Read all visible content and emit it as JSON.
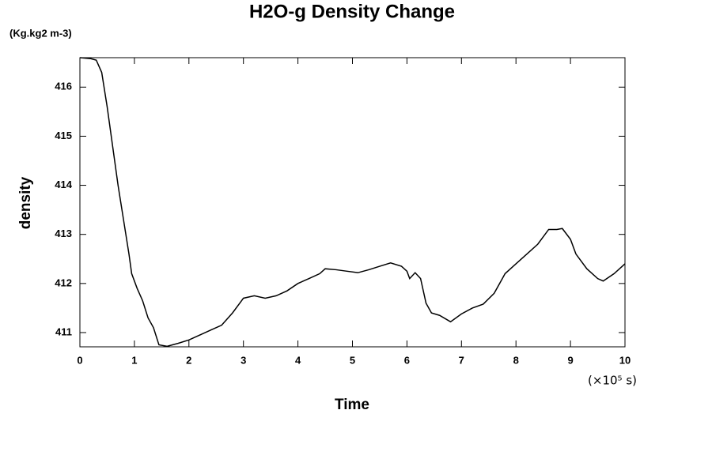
{
  "chart_data": {
    "type": "line",
    "title": "H2O-g Density Change",
    "y_unit": "(Kg.kg2 m-3)",
    "y_label": "density",
    "x_label": "Time",
    "x_unit": "(×10⁵ s)",
    "x": [
      0,
      0.2,
      0.3,
      0.4,
      0.5,
      0.6,
      0.7,
      0.8,
      0.9,
      0.95,
      1.05,
      1.15,
      1.25,
      1.35,
      1.45,
      1.6,
      1.8,
      2.0,
      2.2,
      2.4,
      2.6,
      2.8,
      3.0,
      3.2,
      3.4,
      3.6,
      3.8,
      4.0,
      4.2,
      4.4,
      4.5,
      4.7,
      4.9,
      5.1,
      5.3,
      5.5,
      5.7,
      5.9,
      6.0,
      6.05,
      6.15,
      6.25,
      6.35,
      6.45,
      6.6,
      6.8,
      7.0,
      7.2,
      7.4,
      7.6,
      7.8,
      8.0,
      8.2,
      8.4,
      8.6,
      8.75,
      8.85,
      9.0,
      9.1,
      9.3,
      9.5,
      9.6,
      9.8,
      10.0
    ],
    "series": [
      {
        "name": "density",
        "color": "#000000",
        "values": [
          416.6,
          416.58,
          416.55,
          416.3,
          415.6,
          414.8,
          414.0,
          413.3,
          412.6,
          412.2,
          411.9,
          411.65,
          411.3,
          411.1,
          410.75,
          410.72,
          410.78,
          410.85,
          410.95,
          411.05,
          411.15,
          411.4,
          411.7,
          411.75,
          411.7,
          411.75,
          411.85,
          412.0,
          412.1,
          412.2,
          412.3,
          412.28,
          412.25,
          412.22,
          412.28,
          412.35,
          412.42,
          412.35,
          412.25,
          412.1,
          412.22,
          412.1,
          411.6,
          411.4,
          411.35,
          411.22,
          411.38,
          411.5,
          411.58,
          411.8,
          412.2,
          412.4,
          412.6,
          412.8,
          413.1,
          413.1,
          413.12,
          412.9,
          412.6,
          412.3,
          412.1,
          412.05,
          412.2,
          412.4
        ]
      }
    ],
    "xlim": [
      0,
      10
    ],
    "xticks": [
      0,
      1,
      2,
      3,
      4,
      5,
      6,
      7,
      8,
      9,
      10
    ],
    "ylim": [
      410.71,
      416.6
    ],
    "yticks": [
      411,
      412,
      413,
      414,
      415,
      416
    ],
    "grid": false
  }
}
